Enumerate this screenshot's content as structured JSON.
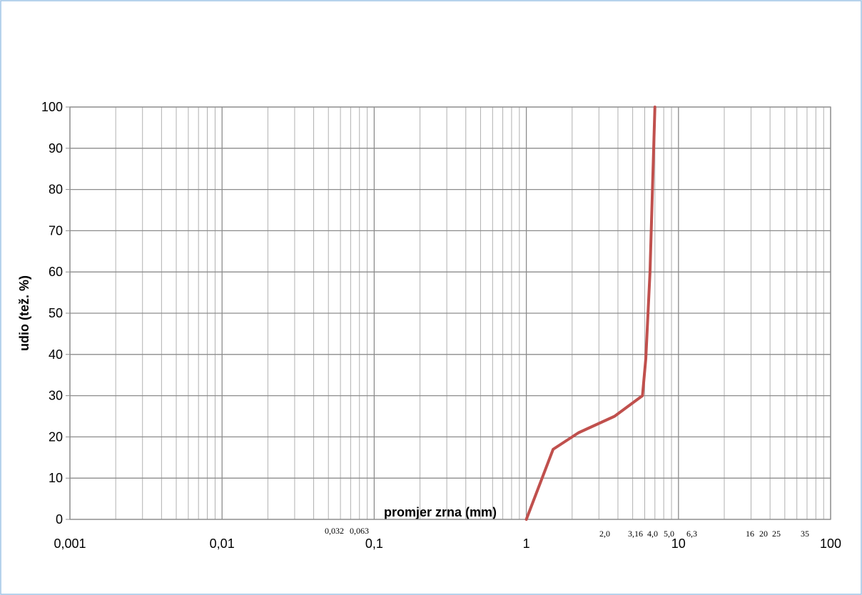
{
  "chart_data": {
    "type": "line",
    "xlabel": "promjer zrna (mm)",
    "ylabel": "udio (tež. %)",
    "xscale": "log",
    "xlim": [
      0.001,
      100
    ],
    "xticks": [
      {
        "value": 0.001,
        "label": "0,001"
      },
      {
        "value": 0.01,
        "label": "0,01"
      },
      {
        "value": 0.1,
        "label": "0,1"
      },
      1,
      10,
      100
    ],
    "ylim": [
      0,
      100
    ],
    "yticks": [
      0,
      10,
      20,
      30,
      40,
      50,
      60,
      70,
      80,
      90,
      100
    ],
    "grid": true,
    "annotations": [
      "0,032",
      "0,063",
      "2,0",
      "3,16",
      "4,0",
      "5,0",
      "6,3",
      "16",
      "20",
      "25",
      "35"
    ],
    "series": [
      {
        "color": "#c0504d",
        "x": [
          1,
          1.5,
          2.2,
          3.8,
          5.8,
          6.1,
          6.5,
          7.0
        ],
        "values": [
          0,
          17,
          21,
          25,
          30,
          39,
          60,
          100
        ]
      }
    ]
  }
}
